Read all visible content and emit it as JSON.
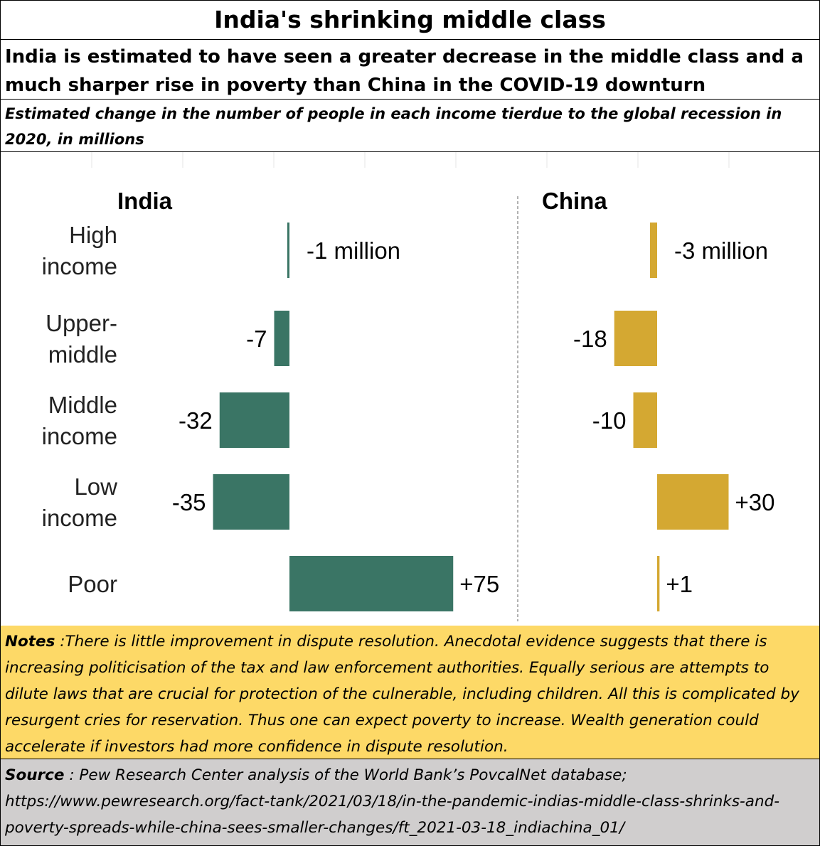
{
  "title": "India's shrinking middle class",
  "subtitle": "India is estimated to have seen a greater decrease in the middle class and a much sharper rise in poverty than China in the COVID-19 downturn",
  "description": "Estimated change in the number of people in each income tierdue to the global recession  in 2020, in millions",
  "notes": {
    "label": "Notes",
    "text": " :There is little improvement in dispute resolution. Anecdotal evidence suggests that there is increasing politicisation of the tax and law enforcement authorities. Equally serious are attempts to dilute laws that are crucial for protection of the culnerable, including children. All this is complicated by resurgent cries for reservation. Thus one can expect poverty to increase.  Wealth generation could accelerate if investors had more confidence in dispute resolution."
  },
  "source": {
    "label": "Source",
    "text": " : Pew Research Center analysis of the World Bank’s PovcalNet database; https://www.pewresearch.org/fact-tank/2021/03/18/in-the-pandemic-indias-middle-class-shrinks-and-poverty-spreads-while-china-sees-smaller-changes/ft_2021-03-18_indiachina_01/"
  },
  "colors": {
    "india": "#3a7565",
    "china": "#d4a832",
    "notes_bg": "#fdd967",
    "source_bg": "#d0cece"
  },
  "chart_data": {
    "type": "bar",
    "orientation": "horizontal",
    "categories": [
      "High income",
      "Upper-middle",
      "Middle income",
      "Low income",
      "Poor"
    ],
    "category_lines": [
      [
        "High",
        "income"
      ],
      [
        "Upper-",
        "middle"
      ],
      [
        "Middle",
        "income"
      ],
      [
        "Low",
        "income"
      ],
      [
        "Poor"
      ]
    ],
    "series": [
      {
        "name": "India",
        "values": [
          -1,
          -7,
          -32,
          -35,
          75
        ],
        "labels": [
          "-1 million",
          "-7",
          "-32",
          "-35",
          "+75"
        ]
      },
      {
        "name": "China",
        "values": [
          -3,
          -18,
          -10,
          30,
          1
        ],
        "labels": [
          "-3 million",
          "-18",
          "-10",
          "+30",
          "+1"
        ]
      }
    ]
  }
}
